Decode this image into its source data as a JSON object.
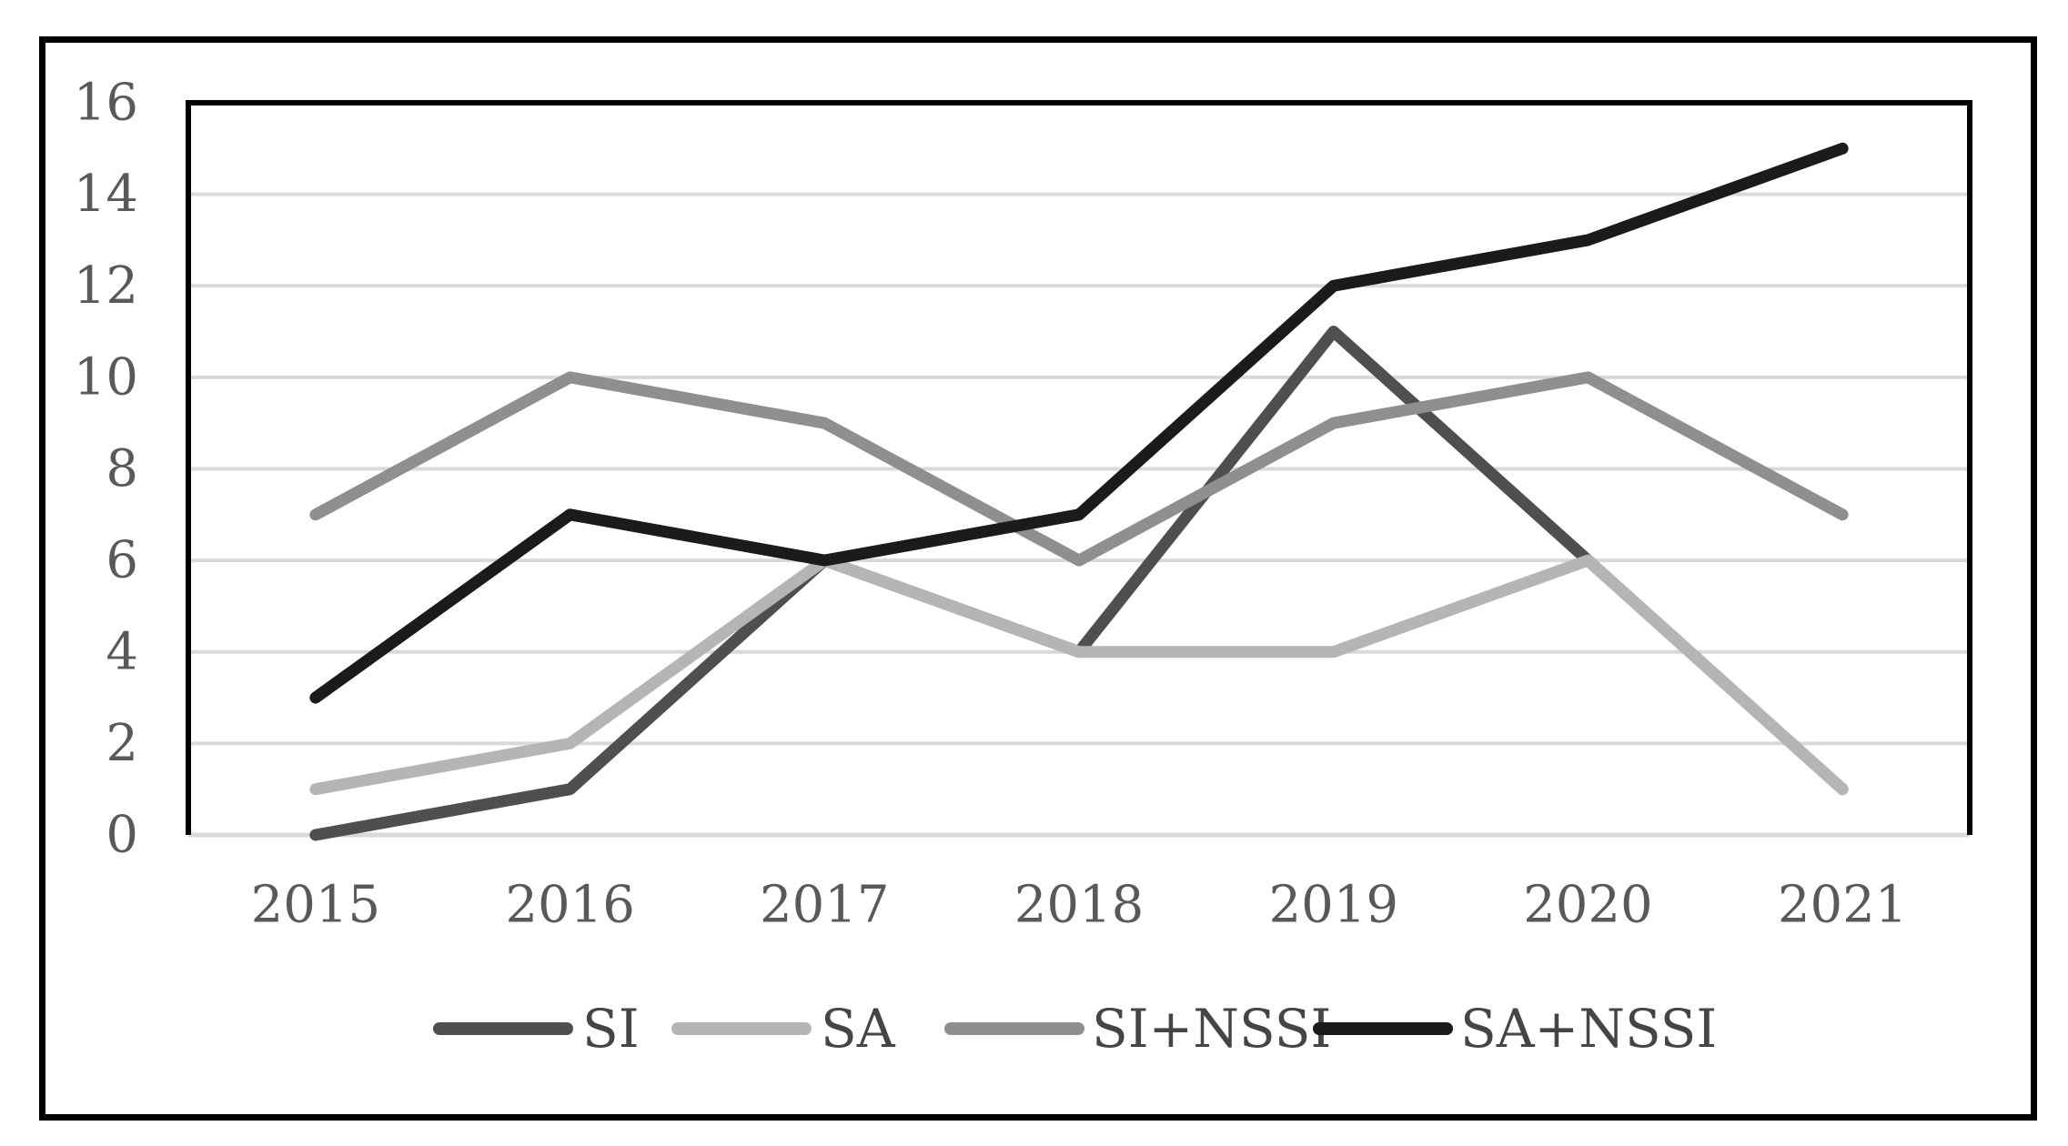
{
  "figure": {
    "type": "statistical line chart",
    "background_color": "#ffffff",
    "outer_border_color": "#000000"
  },
  "chart_data": {
    "type": "line",
    "title": "",
    "xlabel": "",
    "ylabel": "",
    "categories": [
      "2015",
      "2016",
      "2017",
      "2018",
      "2019",
      "2020",
      "2021"
    ],
    "series": [
      {
        "name": "SI",
        "color": "#4f4f4f",
        "values": [
          0,
          1,
          6,
          4,
          11,
          6,
          1
        ]
      },
      {
        "name": "SA",
        "color": "#b5b5b5",
        "values": [
          1,
          2,
          6,
          4,
          4,
          6,
          1
        ]
      },
      {
        "name": "SI+NSSI",
        "color": "#8f8f8f",
        "values": [
          7,
          10,
          9,
          6,
          9,
          10,
          7
        ]
      },
      {
        "name": "SA+NSSI",
        "color": "#1b1b1b",
        "values": [
          3,
          7,
          6,
          7,
          12,
          13,
          15
        ]
      }
    ],
    "ylim": [
      0,
      16
    ],
    "y_ticks": [
      "0",
      "2",
      "4",
      "6",
      "8",
      "10",
      "12",
      "14",
      "16"
    ],
    "y_tick_step": 2,
    "grid": true,
    "gridline_color": "#d9d9d9",
    "plot_border_color": "#000000",
    "axis_label_color": "#595959",
    "legend_position": "bottom",
    "legend_text_color": "#454545",
    "legend": [
      "SI",
      "SA",
      "SI+NSSI",
      "SA+NSSI"
    ]
  }
}
